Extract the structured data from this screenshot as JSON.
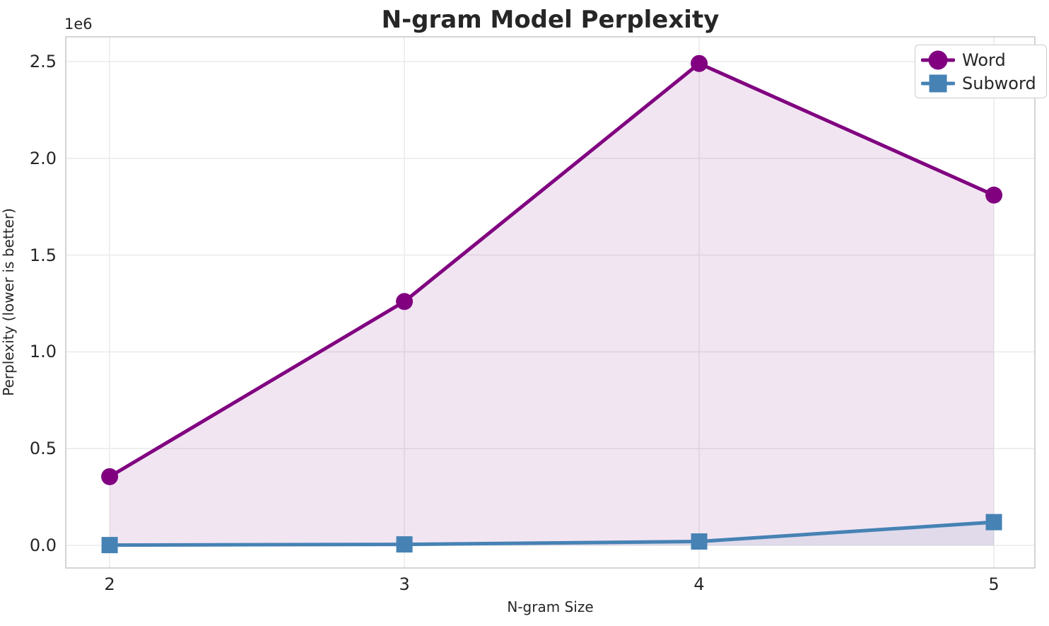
{
  "chart_data": {
    "type": "line",
    "title": "N-gram Model Perplexity",
    "xlabel": "N-gram Size",
    "ylabel": "Perplexity (lower is better)",
    "y_offset_label": "1e6",
    "x": [
      2,
      3,
      4,
      5
    ],
    "series": [
      {
        "name": "Word",
        "color": "#800080",
        "marker": "circle",
        "values": [
          355000,
          1260000,
          2490000,
          1810000
        ]
      },
      {
        "name": "Subword",
        "color": "#4682b4",
        "marker": "square",
        "values": [
          1500,
          5000,
          20000,
          120000
        ]
      }
    ],
    "fill_to_zero": true,
    "fill_alpha": 0.1,
    "xlim": [
      1.851,
      5.139
    ],
    "ylim": [
      -117000,
      2628000
    ],
    "x_ticks": [
      {
        "value": 2,
        "label": "2"
      },
      {
        "value": 3,
        "label": "3"
      },
      {
        "value": 4,
        "label": "4"
      },
      {
        "value": 5,
        "label": "5"
      }
    ],
    "y_ticks": [
      {
        "value": 0,
        "label": "0.0"
      },
      {
        "value": 500000,
        "label": "0.5"
      },
      {
        "value": 1000000,
        "label": "1.0"
      },
      {
        "value": 1500000,
        "label": "1.5"
      },
      {
        "value": 2000000,
        "label": "2.0"
      },
      {
        "value": 2500000,
        "label": "2.5"
      }
    ],
    "grid": true,
    "legend_position": "upper right",
    "colors": {
      "text": "#262626",
      "grid": "#ebebeb",
      "spine": "#c7c7c7",
      "background": "#ffffff"
    }
  }
}
